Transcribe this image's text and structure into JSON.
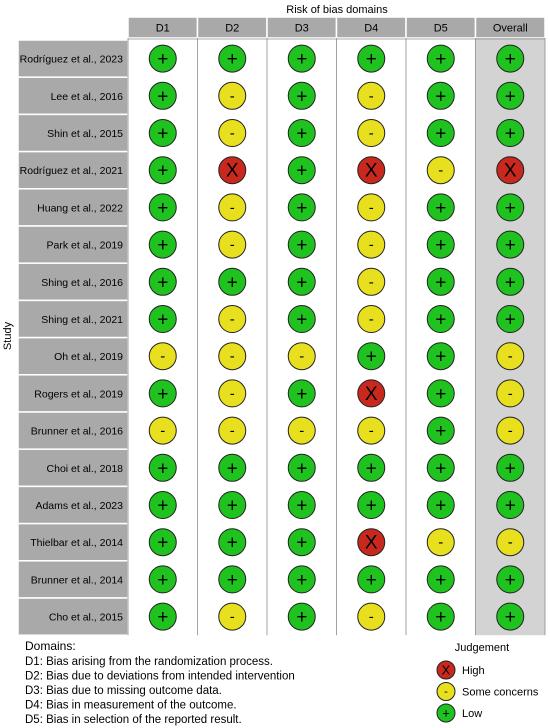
{
  "chart_data": {
    "type": "table",
    "title": "Risk of bias domains",
    "ylabel": "Study",
    "columns": [
      "D1",
      "D2",
      "D3",
      "D4",
      "D5",
      "Overall"
    ],
    "studies": [
      "Rodríguez et al., 2023",
      "Lee et al., 2016",
      "Shin et al., 2015",
      "Rodríguez et al., 2021",
      "Huang et al., 2022",
      "Park et al., 2019",
      "Shing et al., 2016",
      "Shing et al., 2021",
      "Oh et al., 2019",
      "Rogers et al., 2019",
      "Brunner et al., 2016",
      "Choi et al., 2018",
      "Adams et al., 2023",
      "Thielbar et al., 2014",
      "Brunner et al., 2014",
      "Cho et al., 2015"
    ],
    "judgements": [
      [
        "low",
        "low",
        "low",
        "low",
        "low",
        "low"
      ],
      [
        "low",
        "some",
        "low",
        "some",
        "low",
        "low"
      ],
      [
        "low",
        "some",
        "low",
        "some",
        "low",
        "low"
      ],
      [
        "low",
        "high",
        "low",
        "high",
        "some",
        "high"
      ],
      [
        "low",
        "some",
        "low",
        "some",
        "low",
        "low"
      ],
      [
        "low",
        "some",
        "low",
        "some",
        "low",
        "low"
      ],
      [
        "low",
        "low",
        "low",
        "some",
        "low",
        "low"
      ],
      [
        "low",
        "some",
        "low",
        "some",
        "low",
        "low"
      ],
      [
        "some",
        "some",
        "some",
        "low",
        "low",
        "some"
      ],
      [
        "low",
        "some",
        "low",
        "high",
        "low",
        "some"
      ],
      [
        "some",
        "some",
        "some",
        "some",
        "low",
        "some"
      ],
      [
        "low",
        "low",
        "low",
        "low",
        "low",
        "low"
      ],
      [
        "low",
        "low",
        "low",
        "low",
        "low",
        "low"
      ],
      [
        "low",
        "low",
        "low",
        "high",
        "some",
        "some"
      ],
      [
        "low",
        "low",
        "low",
        "low",
        "low",
        "low"
      ],
      [
        "low",
        "some",
        "low",
        "some",
        "low",
        "low"
      ]
    ],
    "symbols": {
      "high": "X",
      "some": "-",
      "low": "+"
    },
    "colors": {
      "high": "#c8281e",
      "some": "#e8e01e",
      "low": "#1fc21f",
      "header_fill": "#a9a9a9",
      "overall_fill": "#d3d3d3",
      "grid": "#ffffff"
    },
    "domains_title": "Domains:",
    "domains": [
      "D1: Bias arising from the randomization process.",
      "D2: Bias due to deviations from intended intervention",
      "D3: Bias due to missing outcome data.",
      "D4: Bias in measurement of the outcome.",
      "D5: Bias in selection of the reported result."
    ],
    "legend_title": "Judgement",
    "legend": [
      {
        "key": "high",
        "label": "High"
      },
      {
        "key": "some",
        "label": "Some concerns"
      },
      {
        "key": "low",
        "label": "Low"
      }
    ]
  }
}
